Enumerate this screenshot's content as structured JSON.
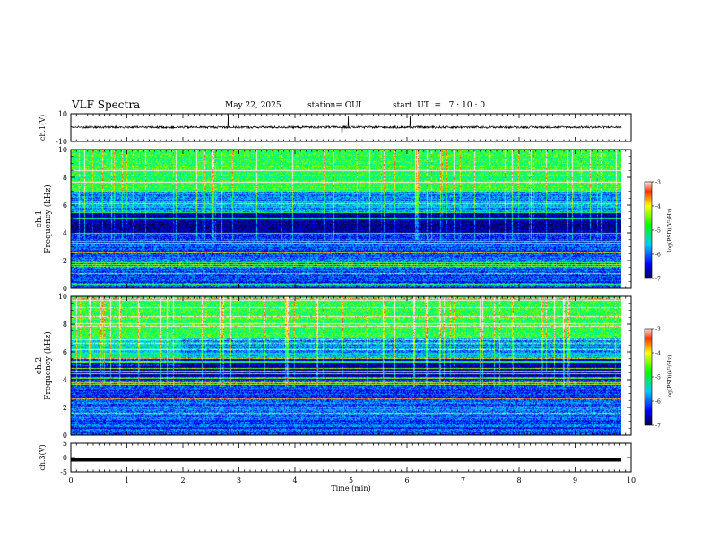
{
  "header": {
    "title": "VLF Spectra",
    "date": "May 22, 2025",
    "station": "station= OUI",
    "start": "start  UT  =   7 : 10 : 0"
  },
  "chart_data": [
    {
      "type": "line",
      "panel": "ch1-waveform",
      "ylabel": "ch.1(V)",
      "ylim": [
        -10,
        10
      ],
      "yticks": [
        "10",
        "-10"
      ],
      "xlim": [
        0,
        10
      ],
      "series": [
        {
          "values_description_free": true
        }
      ]
    },
    {
      "type": "heatmap",
      "panel": "ch1-spectrogram",
      "ylabel_top": "ch.1",
      "ylabel": "Frequency (kHz)",
      "ylim": [
        0,
        10
      ],
      "yticks": [
        "0",
        "2",
        "4",
        "6",
        "8",
        "10"
      ],
      "xlim": [
        0,
        10
      ],
      "colorbar": {
        "label": "log(PSD)(V²/Hz)",
        "ticks": [
          "-3",
          "-4",
          "-5",
          "-6",
          "-7"
        ],
        "range": [
          -7,
          -3
        ]
      }
    },
    {
      "type": "heatmap",
      "panel": "ch2-spectrogram",
      "ylabel_top": "ch.2",
      "ylabel": "Frequency (kHz)",
      "ylim": [
        0,
        10
      ],
      "yticks": [
        "0",
        "2",
        "4",
        "6",
        "8",
        "10"
      ],
      "xlim": [
        0,
        10
      ],
      "colorbar": {
        "label": "log(PSD)(V²/Hz)",
        "ticks": [
          "-3",
          "-4",
          "-5",
          "-6",
          "-7"
        ],
        "range": [
          -7,
          -3
        ]
      }
    },
    {
      "type": "line",
      "panel": "ch3-waveform",
      "ylabel": "ch.3(V)",
      "ylim": [
        -5,
        5
      ],
      "yticks": [
        "5",
        "0",
        "-5"
      ],
      "xlim": [
        0,
        10
      ],
      "series": [
        {
          "values": [
            -0.8
          ]
        }
      ]
    }
  ],
  "xaxis": {
    "label": "Time (min)",
    "ticks": [
      "0",
      "1",
      "2",
      "3",
      "4",
      "5",
      "6",
      "7",
      "8",
      "9",
      "10"
    ]
  },
  "colors": {
    "background": "#ffffff",
    "trace": "#000000"
  }
}
